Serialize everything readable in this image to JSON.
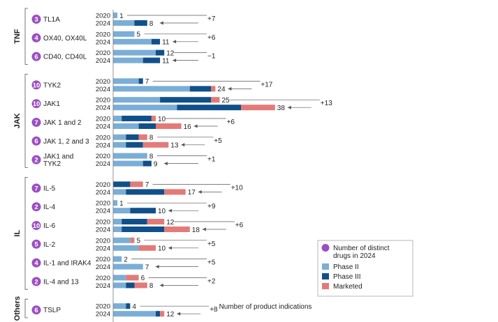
{
  "chart_data": {
    "type": "bar",
    "xlabel": "Number of product indications",
    "colors": {
      "phase2": "#7aaed6",
      "phase3": "#10508a",
      "marketed": "#e47a78",
      "distinct_drugs": "#9b4fc1"
    },
    "legend": {
      "placement": "bottom-right",
      "entries": [
        {
          "key": "distinct_drugs",
          "label_lines": [
            "Number of distinct",
            "drugs in 2024"
          ]
        },
        {
          "key": "phase2",
          "label_lines": [
            "Phase II"
          ]
        },
        {
          "key": "phase3",
          "label_lines": [
            "Phase III"
          ]
        },
        {
          "key": "marketed",
          "label_lines": [
            "Marketed"
          ]
        }
      ]
    },
    "groups": [
      {
        "name": "TNF",
        "targets": [
          {
            "label_lines": [
              "TL1A"
            ],
            "drugs": 3,
            "change": "+7",
            "y2020": {
              "label": "2020",
              "phase2": 1,
              "phase3": 0,
              "marketed": 0,
              "total": 1
            },
            "y2024": {
              "label": "2024",
              "phase2": 5,
              "phase3": 3,
              "marketed": 0,
              "total": 8
            }
          },
          {
            "label_lines": [
              "OX40, OX40L"
            ],
            "drugs": 4,
            "change": "+6",
            "y2020": {
              "label": "2020",
              "phase2": 5,
              "phase3": 0,
              "marketed": 0,
              "total": 5
            },
            "y2024": {
              "label": "2024",
              "phase2": 9,
              "phase3": 2,
              "marketed": 0,
              "total": 11
            }
          },
          {
            "label_lines": [
              "CD40, CD40L"
            ],
            "drugs": 6,
            "change": "−1",
            "y2020": {
              "label": "2020",
              "phase2": 10,
              "phase3": 2,
              "marketed": 0,
              "total": 12
            },
            "y2024": {
              "label": "2024",
              "phase2": 7,
              "phase3": 4,
              "marketed": 0,
              "total": 11
            }
          }
        ]
      },
      {
        "name": "JAK",
        "targets": [
          {
            "label_lines": [
              "TYK2"
            ],
            "drugs": 10,
            "change": "+17",
            "y2020": {
              "label": "2020",
              "phase2": 6,
              "phase3": 1,
              "marketed": 0,
              "total": 7
            },
            "y2024": {
              "label": "2024",
              "phase2": 18,
              "phase3": 5,
              "marketed": 1,
              "total": 24
            }
          },
          {
            "label_lines": [
              "JAK1"
            ],
            "drugs": 10,
            "change": "+13",
            "y2020": {
              "label": "2020",
              "phase2": 11,
              "phase3": 12,
              "marketed": 2,
              "total": 25
            },
            "y2024": {
              "label": "2024",
              "phase2": 15,
              "phase3": 15,
              "marketed": 8,
              "total": 38
            }
          },
          {
            "label_lines": [
              "JAK 1 and 2"
            ],
            "drugs": 7,
            "change": "+6",
            "y2020": {
              "label": "2020",
              "phase2": 2,
              "phase3": 7,
              "marketed": 1,
              "total": 10
            },
            "y2024": {
              "label": "2024",
              "phase2": 6,
              "phase3": 4,
              "marketed": 6,
              "total": 16
            }
          },
          {
            "label_lines": [
              "JAK 1, 2 and 3"
            ],
            "drugs": 6,
            "change": "+5",
            "y2020": {
              "label": "2020",
              "phase2": 3,
              "phase3": 3,
              "marketed": 2,
              "total": 8
            },
            "y2024": {
              "label": "2024",
              "phase2": 3,
              "phase3": 4,
              "marketed": 6,
              "total": 13
            }
          },
          {
            "label_lines": [
              "JAK1 and",
              "TYK2"
            ],
            "drugs": 2,
            "change": "+1",
            "y2020": {
              "label": "2020",
              "phase2": 8,
              "phase3": 0,
              "marketed": 0,
              "total": 8
            },
            "y2024": {
              "label": "2024",
              "phase2": 7,
              "phase3": 2,
              "marketed": 0,
              "total": 9
            }
          }
        ]
      },
      {
        "name": "IL",
        "targets": [
          {
            "label_lines": [
              "IL-5"
            ],
            "drugs": 7,
            "change": "+10",
            "y2020": {
              "label": "2020",
              "phase2": 0,
              "phase3": 4,
              "marketed": 3,
              "total": 7
            },
            "y2024": {
              "label": "2024",
              "phase2": 3,
              "phase3": 9,
              "marketed": 5,
              "total": 17
            }
          },
          {
            "label_lines": [
              "IL-4"
            ],
            "drugs": 2,
            "change": "+9",
            "y2020": {
              "label": "2020",
              "phase2": 1,
              "phase3": 0,
              "marketed": 0,
              "total": 1
            },
            "y2024": {
              "label": "2024",
              "phase2": 4,
              "phase3": 6,
              "marketed": 0,
              "total": 10
            }
          },
          {
            "label_lines": [
              "IL-6"
            ],
            "drugs": 10,
            "change": "+6",
            "y2020": {
              "label": "2020",
              "phase2": 2,
              "phase3": 6,
              "marketed": 4,
              "total": 12
            },
            "y2024": {
              "label": "2024",
              "phase2": 2,
              "phase3": 10,
              "marketed": 6,
              "total": 18
            }
          },
          {
            "label_lines": [
              "IL-2"
            ],
            "drugs": 5,
            "change": "+5",
            "y2020": {
              "label": "2020",
              "phase2": 4,
              "phase3": 0,
              "marketed": 1,
              "total": 5
            },
            "y2024": {
              "label": "2024",
              "phase2": 6,
              "phase3": 0,
              "marketed": 4,
              "total": 10
            }
          },
          {
            "label_lines": [
              "IL-1 and IRAK4"
            ],
            "drugs": 4,
            "change": "+5",
            "y2020": {
              "label": "2020",
              "phase2": 2,
              "phase3": 0,
              "marketed": 0,
              "total": 2
            },
            "y2024": {
              "label": "2024",
              "phase2": 7,
              "phase3": 0,
              "marketed": 0,
              "total": 7
            }
          },
          {
            "label_lines": [
              "IL-4 and 13"
            ],
            "drugs": 2,
            "change": "+2",
            "y2020": {
              "label": "2020",
              "phase2": 3,
              "phase3": 0,
              "marketed": 3,
              "total": 6
            },
            "y2024": {
              "label": "2024",
              "phase2": 3,
              "phase3": 2,
              "marketed": 3,
              "total": 8
            }
          }
        ]
      },
      {
        "name": "Others",
        "targets": [
          {
            "label_lines": [
              "TSLP"
            ],
            "drugs": 6,
            "change": "+8",
            "y2020": {
              "label": "2020",
              "phase2": 3,
              "phase3": 1,
              "marketed": 0,
              "total": 4
            },
            "y2024": {
              "label": "2024",
              "phase2": 10,
              "phase3": 1,
              "marketed": 1,
              "total": 12
            }
          }
        ]
      }
    ]
  }
}
